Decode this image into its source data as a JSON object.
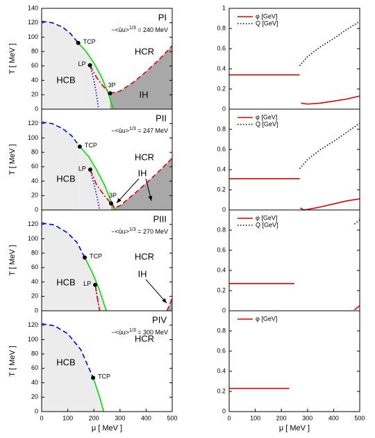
{
  "chart_data": [
    {
      "type": "line",
      "title": "PI",
      "condensate_label": [
        "−<ūu>",
        "1/3",
        " = 240 MeV"
      ],
      "ylabel": "T  [ MeV ]",
      "regions": [
        "HCB",
        "HCR",
        "IH"
      ],
      "points": [
        {
          "label": "TCP",
          "x": 140,
          "y": 92
        },
        {
          "label": "LP",
          "x": 185,
          "y": 61
        },
        {
          "label": "3P",
          "x": 262,
          "y": 22
        }
      ],
      "series": [
        {
          "color": "#0000e0",
          "style": "dashed",
          "fill": "#ececec",
          "x": [
            0,
            40,
            80,
            110,
            140
          ],
          "values": [
            122,
            120,
            114,
            105,
            92
          ]
        },
        {
          "color": "#00e000",
          "style": "solid",
          "fill": "#ececec",
          "x": [
            140,
            170,
            200,
            230,
            255,
            275
          ],
          "values": [
            92,
            80,
            64,
            44,
            22,
            0
          ]
        },
        {
          "color": "#a8a8a8",
          "style": "none",
          "fill": "#a8a8a8",
          "x": [
            262,
            300,
            350,
            400,
            450,
            500
          ],
          "values": [
            22,
            25,
            37,
            52,
            69,
            88
          ]
        },
        {
          "color": "#0000e0",
          "style": "dotted",
          "x": [
            185,
            200,
            210,
            218
          ],
          "values": [
            61,
            40,
            20,
            0
          ]
        },
        {
          "color": "#e00000",
          "style": "dashdot",
          "x": [
            185,
            210,
            235,
            262
          ],
          "values": [
            61,
            44,
            32,
            22
          ]
        },
        {
          "color": "#e00000",
          "style": "dashed",
          "x": [
            262,
            300,
            350,
            400,
            450,
            500
          ],
          "values": [
            22,
            25,
            37,
            52,
            69,
            88
          ]
        }
      ],
      "xlim": [
        0,
        500
      ],
      "ylim": [
        0,
        140
      ],
      "yticks": [
        0,
        20,
        40,
        60,
        80,
        100,
        120,
        140
      ]
    },
    {
      "type": "line",
      "legend": "upper left",
      "series": [
        {
          "name": "φ [GeV]",
          "color": "#e00000",
          "style": "solid",
          "x": [
            0,
            270,
            270,
            275,
            300,
            350,
            400,
            450,
            500
          ],
          "values": [
            0.34,
            0.34,
            null,
            0.06,
            0.05,
            0.06,
            0.08,
            0.1,
            0.13
          ]
        },
        {
          "name": "Q [GeV]",
          "color": "#000000",
          "style": "dotted",
          "x": [
            270,
            300,
            350,
            400,
            450,
            500
          ],
          "values": [
            0.43,
            0.52,
            0.62,
            0.7,
            0.79,
            0.87
          ]
        }
      ],
      "xlim": [
        0,
        500
      ],
      "ylim": [
        0,
        1
      ],
      "yticks": [
        0,
        0.2,
        0.4,
        0.6,
        0.8,
        1
      ]
    },
    {
      "type": "line",
      "title": "PII",
      "condensate_label": [
        "−<ūu>",
        "1/3",
        " = 247 MeV"
      ],
      "ylabel": "T  [ MeV ]",
      "regions": [
        "HCB",
        "HCR",
        "IH"
      ],
      "points": [
        {
          "label": "TCP",
          "x": 146,
          "y": 88
        },
        {
          "label": "LP",
          "x": 186,
          "y": 56
        },
        {
          "label": "3P",
          "x": 266,
          "y": 9
        }
      ],
      "series": [
        {
          "color": "#0000e0",
          "style": "dashed",
          "fill": "#ececec",
          "x": [
            0,
            40,
            80,
            115,
            146
          ],
          "values": [
            122,
            120,
            113,
            103,
            88
          ]
        },
        {
          "color": "#00e000",
          "style": "solid",
          "fill": "#ececec",
          "x": [
            146,
            180,
            210,
            240,
            265,
            282
          ],
          "values": [
            88,
            74,
            56,
            35,
            13,
            0
          ]
        },
        {
          "color": "#a8a8a8",
          "style": "none",
          "fill": "#a8a8a8",
          "x": [
            266,
            280,
            300,
            350,
            400,
            450,
            500
          ],
          "values": [
            9,
            3,
            6,
            21,
            37,
            54,
            72
          ]
        },
        {
          "color": "#0000e0",
          "style": "dotted",
          "x": [
            186,
            200,
            212,
            222
          ],
          "values": [
            56,
            36,
            18,
            0
          ]
        },
        {
          "color": "#e00000",
          "style": "dashdot",
          "x": [
            186,
            210,
            240,
            266
          ],
          "values": [
            56,
            35,
            20,
            9
          ]
        },
        {
          "color": "#e00000",
          "style": "dashed",
          "x": [
            266,
            280,
            300,
            350,
            400,
            450,
            500
          ],
          "values": [
            9,
            3,
            6,
            21,
            37,
            54,
            72
          ]
        }
      ],
      "xlim": [
        0,
        500
      ],
      "ylim": [
        0,
        140
      ],
      "yticks": [
        0,
        20,
        40,
        60,
        80,
        100,
        120
      ]
    },
    {
      "type": "line",
      "legend": "upper left",
      "series": [
        {
          "name": "φ [GeV]",
          "color": "#e00000",
          "style": "solid",
          "x": [
            0,
            270,
            272,
            272,
            285,
            300,
            350,
            400,
            450,
            500
          ],
          "values": [
            0.31,
            0.31,
            null,
            0.02,
            0,
            0.005,
            0.03,
            0.06,
            0.09,
            0.11
          ]
        },
        {
          "name": "Q [GeV]",
          "color": "#000000",
          "style": "dotted",
          "x": [
            270,
            300,
            350,
            400,
            450,
            500
          ],
          "values": [
            0.41,
            0.5,
            0.6,
            0.68,
            0.77,
            0.86
          ]
        }
      ],
      "xlim": [
        0,
        500
      ],
      "ylim": [
        0,
        1
      ],
      "yticks": [
        0,
        0.2,
        0.4,
        0.6,
        0.8
      ]
    },
    {
      "type": "line",
      "title": "PIII",
      "condensate_label": [
        "−<ūu>",
        "1/3",
        " = 270 MeV"
      ],
      "ylabel": "T  [ MeV ]",
      "regions": [
        "HCB",
        "HCR",
        "IH"
      ],
      "points": [
        {
          "label": "TCP",
          "x": 165,
          "y": 74
        },
        {
          "label": "LP",
          "x": 205,
          "y": 36
        }
      ],
      "series": [
        {
          "color": "#0000e0",
          "style": "dashed",
          "fill": "#ececec",
          "x": [
            0,
            50,
            100,
            135,
            165
          ],
          "values": [
            122,
            119,
            108,
            95,
            74
          ]
        },
        {
          "color": "#00e000",
          "style": "solid",
          "fill": "#ececec",
          "x": [
            165,
            195,
            220,
            240,
            248
          ],
          "values": [
            74,
            52,
            30,
            8,
            0
          ]
        },
        {
          "color": "#a8a8a8",
          "style": "none",
          "fill": "#a8a8a8",
          "x": [
            480,
            500
          ],
          "values": [
            0,
            18
          ]
        },
        {
          "color": "#0000e0",
          "style": "dotted",
          "x": [
            205,
            215,
            222
          ],
          "values": [
            36,
            15,
            0
          ]
        },
        {
          "color": "#e00000",
          "style": "dashdot",
          "x": [
            205,
            212,
            222
          ],
          "values": [
            36,
            20,
            0
          ]
        },
        {
          "color": "#e00000",
          "style": "dashed",
          "x": [
            480,
            500
          ],
          "values": [
            0,
            18
          ]
        }
      ],
      "xlim": [
        0,
        500
      ],
      "ylim": [
        0,
        140
      ],
      "yticks": [
        0,
        20,
        40,
        60,
        80,
        100,
        120
      ]
    },
    {
      "type": "line",
      "legend": "upper left",
      "series": [
        {
          "name": "φ [GeV]",
          "color": "#e00000",
          "style": "solid",
          "x": [
            0,
            250,
            250,
            480,
            490,
            500
          ],
          "values": [
            0.27,
            0.27,
            null,
            0.01,
            0.03,
            0.05
          ]
        },
        {
          "name": "Q [GeV]",
          "color": "#000000",
          "style": "dotted",
          "x": [
            480,
            500
          ],
          "values": [
            0.86,
            0.9
          ]
        }
      ],
      "xlim": [
        0,
        500
      ],
      "ylim": [
        0,
        1
      ],
      "yticks": [
        0,
        0.2,
        0.4,
        0.6,
        0.8
      ]
    },
    {
      "type": "line",
      "title": "PIV",
      "condensate_label": [
        "−<ūu>",
        "1/3",
        " = 300 MeV"
      ],
      "ylabel": "T  [ MeV ]",
      "xlabel": "μ   [ MeV ]",
      "regions": [
        "HCB",
        "HCR"
      ],
      "points": [
        {
          "label": "TCP",
          "x": 197,
          "y": 47
        }
      ],
      "series": [
        {
          "color": "#0000e0",
          "style": "dashed",
          "fill": "#ececec",
          "x": [
            0,
            50,
            100,
            150,
            197
          ],
          "values": [
            122,
            119,
            108,
            86,
            47
          ]
        },
        {
          "color": "#00e000",
          "style": "solid",
          "fill": "#ececec",
          "x": [
            197,
            215,
            230,
            237
          ],
          "values": [
            47,
            28,
            10,
            0
          ]
        }
      ],
      "xlim": [
        0,
        500
      ],
      "ylim": [
        0,
        140
      ],
      "yticks": [
        0,
        20,
        40,
        60,
        80,
        100,
        120
      ],
      "xticks": [
        0,
        100,
        200,
        300,
        400,
        500
      ]
    },
    {
      "type": "line",
      "legend": "upper left",
      "xlabel": "μ   [ MeV ]",
      "series": [
        {
          "name": "φ [GeV]",
          "color": "#e00000",
          "style": "solid",
          "x": [
            0,
            230
          ],
          "values": [
            0.23,
            0.23
          ]
        }
      ],
      "xlim": [
        0,
        500
      ],
      "ylim": [
        0,
        1
      ],
      "yticks": [
        0,
        0.2,
        0.4,
        0.6,
        0.8
      ],
      "xticks": [
        0,
        100,
        200,
        300,
        400,
        500
      ]
    }
  ]
}
